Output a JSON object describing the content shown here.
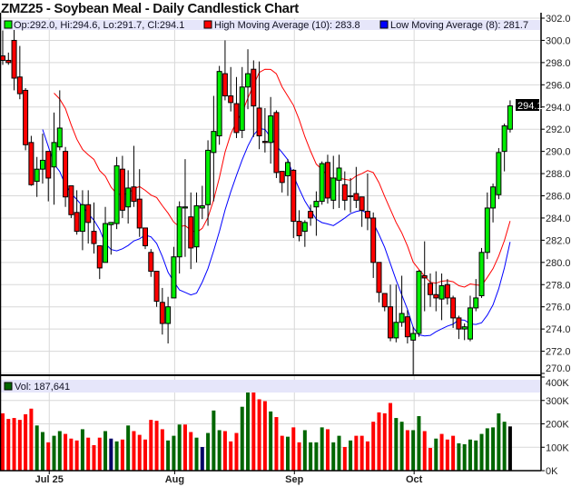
{
  "chart_data": {
    "type": "candlestick",
    "title": "ZMZ25 - Soybean Meal - Daily Candlestick Chart",
    "legend": {
      "ohlc": "Op:292.0, Hi:294.6, Lo:291.7, Cl:294.1",
      "high_ma": "High Moving Average (10): 283.8",
      "low_ma": "Low Moving Average (8): 281.7",
      "volume": "Vol: 187,641"
    },
    "last_price_label": "294.1",
    "colors": {
      "up": "#00ee00",
      "down": "#ff0000",
      "high_ma": "#ff0000",
      "low_ma": "#0000ff",
      "vol_up": "#006600",
      "vol_down": "#ff0000",
      "vol_flat": "#000066",
      "legend_band": "#e6e6fa"
    },
    "price_axis": {
      "min": 270,
      "max": 302,
      "step": 2,
      "ticks": [
        "302.0",
        "300.0",
        "298.0",
        "296.0",
        "294.0",
        "292.0",
        "290.0",
        "288.0",
        "286.0",
        "284.0",
        "282.0",
        "280.0",
        "278.0",
        "276.0",
        "274.0",
        "272.0",
        "270.0"
      ]
    },
    "volume_axis": {
      "min": 0,
      "max": 400000,
      "ticks": [
        "400K",
        "300K",
        "200K",
        "100K",
        "0K"
      ]
    },
    "x_labels": [
      {
        "label": "Jul 25",
        "index": 8
      },
      {
        "label": "Aug",
        "index": 30
      },
      {
        "label": "Sep",
        "index": 51
      },
      {
        "label": "Oct",
        "index": 72
      }
    ],
    "grid": true,
    "ohlc": [
      [
        298.6,
        300.9,
        297.8,
        298.2
      ],
      [
        298.2,
        298.9,
        297.8,
        298.0
      ],
      [
        300.0,
        301.5,
        295.5,
        296.6
      ],
      [
        296.7,
        299.5,
        294.7,
        295.2
      ],
      [
        295.5,
        295.7,
        290.1,
        290.6
      ],
      [
        290.8,
        291.4,
        286.9,
        287.0
      ],
      [
        287.3,
        289.5,
        285.9,
        288.4
      ],
      [
        288.4,
        291.6,
        287.1,
        289.2
      ],
      [
        290.0,
        290.0,
        285.5,
        287.6
      ],
      [
        288.6,
        293.5,
        285.2,
        290.8
      ],
      [
        290.4,
        295.5,
        290.1,
        292.1
      ],
      [
        290.0,
        290.4,
        285.0,
        285.9
      ],
      [
        286.9,
        286.9,
        284.0,
        284.3
      ],
      [
        284.5,
        286.5,
        282.5,
        282.8
      ],
      [
        282.8,
        286.5,
        281.1,
        285.2
      ],
      [
        285.2,
        286.5,
        281.7,
        283.6
      ],
      [
        282.8,
        285.4,
        280.8,
        281.7
      ],
      [
        281.5,
        281.5,
        278.5,
        279.5
      ],
      [
        280.0,
        285.0,
        280.0,
        283.5
      ],
      [
        283.4,
        283.6,
        280.7,
        283.6
      ],
      [
        283.5,
        289.5,
        283.0,
        288.7
      ],
      [
        288.4,
        289.6,
        284.0,
        284.7
      ],
      [
        285.0,
        288.3,
        283.5,
        286.7
      ],
      [
        286.8,
        290.5,
        285.0,
        285.5
      ],
      [
        285.7,
        288.4,
        282.3,
        283.1
      ],
      [
        283.1,
        283.1,
        281.2,
        281.5
      ],
      [
        280.9,
        281.2,
        278.7,
        279.2
      ],
      [
        279.2,
        279.2,
        276.0,
        276.5
      ],
      [
        276.4,
        277.7,
        273.5,
        274.5
      ],
      [
        274.5,
        276.9,
        272.7,
        276.0
      ],
      [
        276.8,
        281.4,
        276.8,
        280.5
      ],
      [
        280.5,
        285.5,
        279.0,
        285.0
      ],
      [
        284.9,
        289.3,
        280.5,
        285.0
      ],
      [
        284.1,
        286.3,
        279.4,
        281.3
      ],
      [
        281.4,
        286.3,
        280.0,
        285.1
      ],
      [
        284.9,
        286.9,
        283.9,
        285.1
      ],
      [
        285.2,
        291.0,
        283.3,
        290.1
      ],
      [
        289.9,
        295.0,
        285.5,
        291.8
      ],
      [
        291.4,
        297.7,
        290.6,
        297.2
      ],
      [
        297.0,
        300.0,
        294.6,
        295.0
      ],
      [
        295.0,
        297.6,
        293.6,
        294.4
      ],
      [
        294.3,
        296.7,
        291.2,
        291.7
      ],
      [
        291.9,
        297.6,
        291.2,
        295.8
      ],
      [
        295.8,
        299.2,
        293.8,
        297.0
      ],
      [
        297.4,
        298.2,
        291.3,
        294.1
      ],
      [
        293.9,
        298.1,
        290.2,
        291.4
      ],
      [
        290.9,
        293.9,
        289.9,
        290.8
      ],
      [
        290.8,
        294.9,
        288.9,
        293.2
      ],
      [
        293.5,
        293.7,
        287.6,
        288.1
      ],
      [
        288.2,
        288.2,
        286.3,
        287.2
      ],
      [
        287.8,
        289.3,
        286.0,
        289.0
      ],
      [
        288.3,
        288.4,
        282.2,
        283.7
      ],
      [
        283.7,
        284.7,
        281.9,
        282.4
      ],
      [
        282.8,
        283.8,
        281.4,
        283.6
      ],
      [
        284.6,
        285.2,
        283.3,
        284.0
      ],
      [
        285.0,
        286.4,
        282.4,
        285.5
      ],
      [
        285.5,
        289.1,
        285.2,
        288.9
      ],
      [
        289.0,
        289.7,
        285.3,
        285.8
      ],
      [
        285.6,
        289.6,
        284.8,
        287.6
      ],
      [
        287.4,
        289.7,
        284.9,
        288.5
      ],
      [
        287.0,
        288.2,
        284.7,
        285.6
      ],
      [
        286.0,
        287.6,
        284.5,
        286.0
      ],
      [
        286.2,
        288.6,
        284.9,
        285.6
      ],
      [
        285.9,
        285.9,
        283.2,
        284.7
      ],
      [
        284.6,
        288.0,
        282.9,
        284.0
      ],
      [
        284.0,
        284.5,
        278.6,
        280.0
      ],
      [
        280.0,
        280.0,
        276.4,
        277.3
      ],
      [
        277.2,
        277.2,
        275.6,
        276.0
      ],
      [
        276.0,
        278.0,
        272.9,
        273.2
      ],
      [
        273.2,
        278.0,
        272.8,
        274.6
      ],
      [
        274.6,
        278.8,
        274.2,
        275.4
      ],
      [
        275.1,
        275.7,
        272.7,
        273.3
      ],
      [
        273.0,
        274.2,
        269.9,
        273.6
      ],
      [
        273.6,
        279.3,
        273.3,
        279.2
      ],
      [
        278.8,
        281.9,
        275.6,
        278.6
      ],
      [
        278.1,
        279.0,
        276.0,
        277.1
      ],
      [
        277.1,
        279.2,
        275.6,
        276.8
      ],
      [
        276.7,
        279.0,
        274.8,
        277.9
      ],
      [
        278.0,
        278.5,
        276.2,
        276.8
      ],
      [
        276.8,
        277.0,
        274.1,
        275.0
      ],
      [
        275.0,
        275.2,
        273.1,
        274.0
      ],
      [
        274.0,
        274.5,
        273.0,
        274.2
      ],
      [
        273.1,
        277.0,
        272.9,
        275.9
      ],
      [
        275.9,
        278.5,
        275.6,
        276.8
      ],
      [
        277.0,
        281.3,
        276.8,
        280.9
      ],
      [
        280.9,
        286.3,
        280.3,
        284.9
      ],
      [
        284.9,
        287.1,
        283.6,
        286.8
      ],
      [
        286.1,
        290.3,
        285.7,
        289.9
      ],
      [
        290.0,
        292.5,
        288.2,
        292.3
      ],
      [
        292.0,
        294.6,
        291.7,
        294.1
      ]
    ],
    "volume": [
      245,
      221,
      225,
      217,
      241,
      265,
      193,
      165,
      121,
      149,
      169,
      157,
      137,
      129,
      177,
      141,
      109,
      141,
      169,
      137,
      125,
      133,
      193,
      169,
      153,
      133,
      217,
      213,
      177,
      129,
      149,
      197,
      197,
      165,
      141,
      101,
      161,
      257,
      173,
      169,
      125,
      161,
      273,
      349,
      347,
      305,
      297,
      253,
      229,
      149,
      145,
      185,
      121,
      173,
      121,
      121,
      185,
      177,
      121,
      149,
      101,
      129,
      149,
      149,
      125,
      209,
      249,
      245,
      289,
      225,
      209,
      173,
      173,
      233,
      169,
      97,
      137,
      157,
      133,
      149,
      117,
      113,
      133,
      129,
      157,
      181,
      185,
      245,
      209,
      189
    ],
    "volume_unit": "thousands",
    "volume_colors": "RRRRRRGGRGGRRRGRRRGBGRGRRRRRRGGGRRGBGGGRRRGGRRRGRRGRRGGGGRGGRGRRRRRRRGGRGGRRGRRRGGGGGGGGG"
  }
}
